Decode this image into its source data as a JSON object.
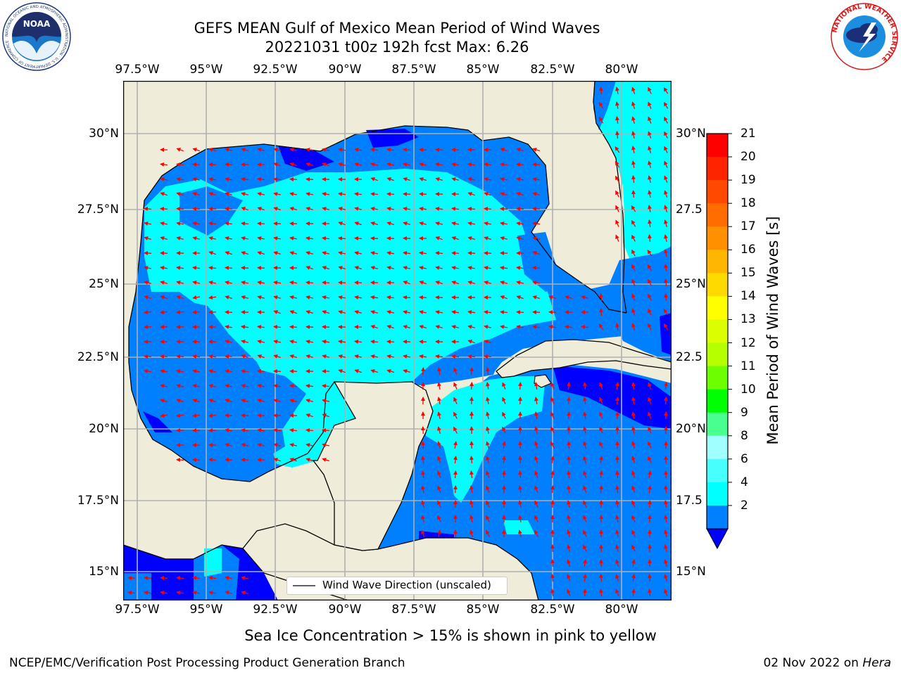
{
  "header": {
    "title_line1": "GEFS MEAN Gulf of Mexico Mean Period of Wind Waves",
    "title_line2": "20221031 t00z 192h fcst   Max: 6.26"
  },
  "logos": {
    "noaa_text": "NOAA",
    "noaa_ring_text": "NATIONAL OCEANIC AND ATMOSPHERIC ADMINISTRATION · U.S. DEPARTMENT OF COMMERCE",
    "nws_ring_text": "NATIONAL WEATHER SERVICE"
  },
  "map": {
    "lon_ticks": [
      "97.5°W",
      "95°W",
      "92.5°W",
      "90°W",
      "87.5°W",
      "85°W",
      "82.5°W",
      "80°W"
    ],
    "lat_ticks_left": [
      "30°N",
      "27.5°N",
      "25°N",
      "22.5°N",
      "20°N",
      "17.5°N",
      "15°N"
    ],
    "lat_ticks_right": [
      "30°N",
      "27.5",
      "25°N",
      "22.5",
      "20°N",
      "17.5",
      "15°N"
    ],
    "legend_label": "Wind Wave Direction (unscaled)",
    "colors": {
      "land": "#efedda",
      "coast": "#000000",
      "grid": "#b0b0b0",
      "arrow": "#ff0000"
    }
  },
  "colorbar": {
    "label": "Mean Period of Wind Waves [s]",
    "tick_labels": [
      "21",
      "20",
      "19",
      "18",
      "17",
      "16",
      "15",
      "14",
      "13",
      "12",
      "11",
      "10",
      "9",
      "8",
      "6",
      "4",
      "2"
    ],
    "bands": [
      "#ff0000",
      "#ff2400",
      "#ff4800",
      "#ff6d00",
      "#ff9100",
      "#ffb600",
      "#ffda00",
      "#ffff00",
      "#dbff00",
      "#b6ff00",
      "#6dff00",
      "#00ff00",
      "#48ff90",
      "#a0ffff",
      "#48ffff",
      "#00ffff",
      "#0080ff"
    ],
    "under_color": "#0000ff"
  },
  "caption": "Sea Ice Concentration > 15% is shown in pink to yellow",
  "footer": {
    "left": "NCEP/EMC/Verification Post Processing Product Generation Branch",
    "right_date": "02 Nov 2022 on ",
    "right_host": "Hera"
  }
}
